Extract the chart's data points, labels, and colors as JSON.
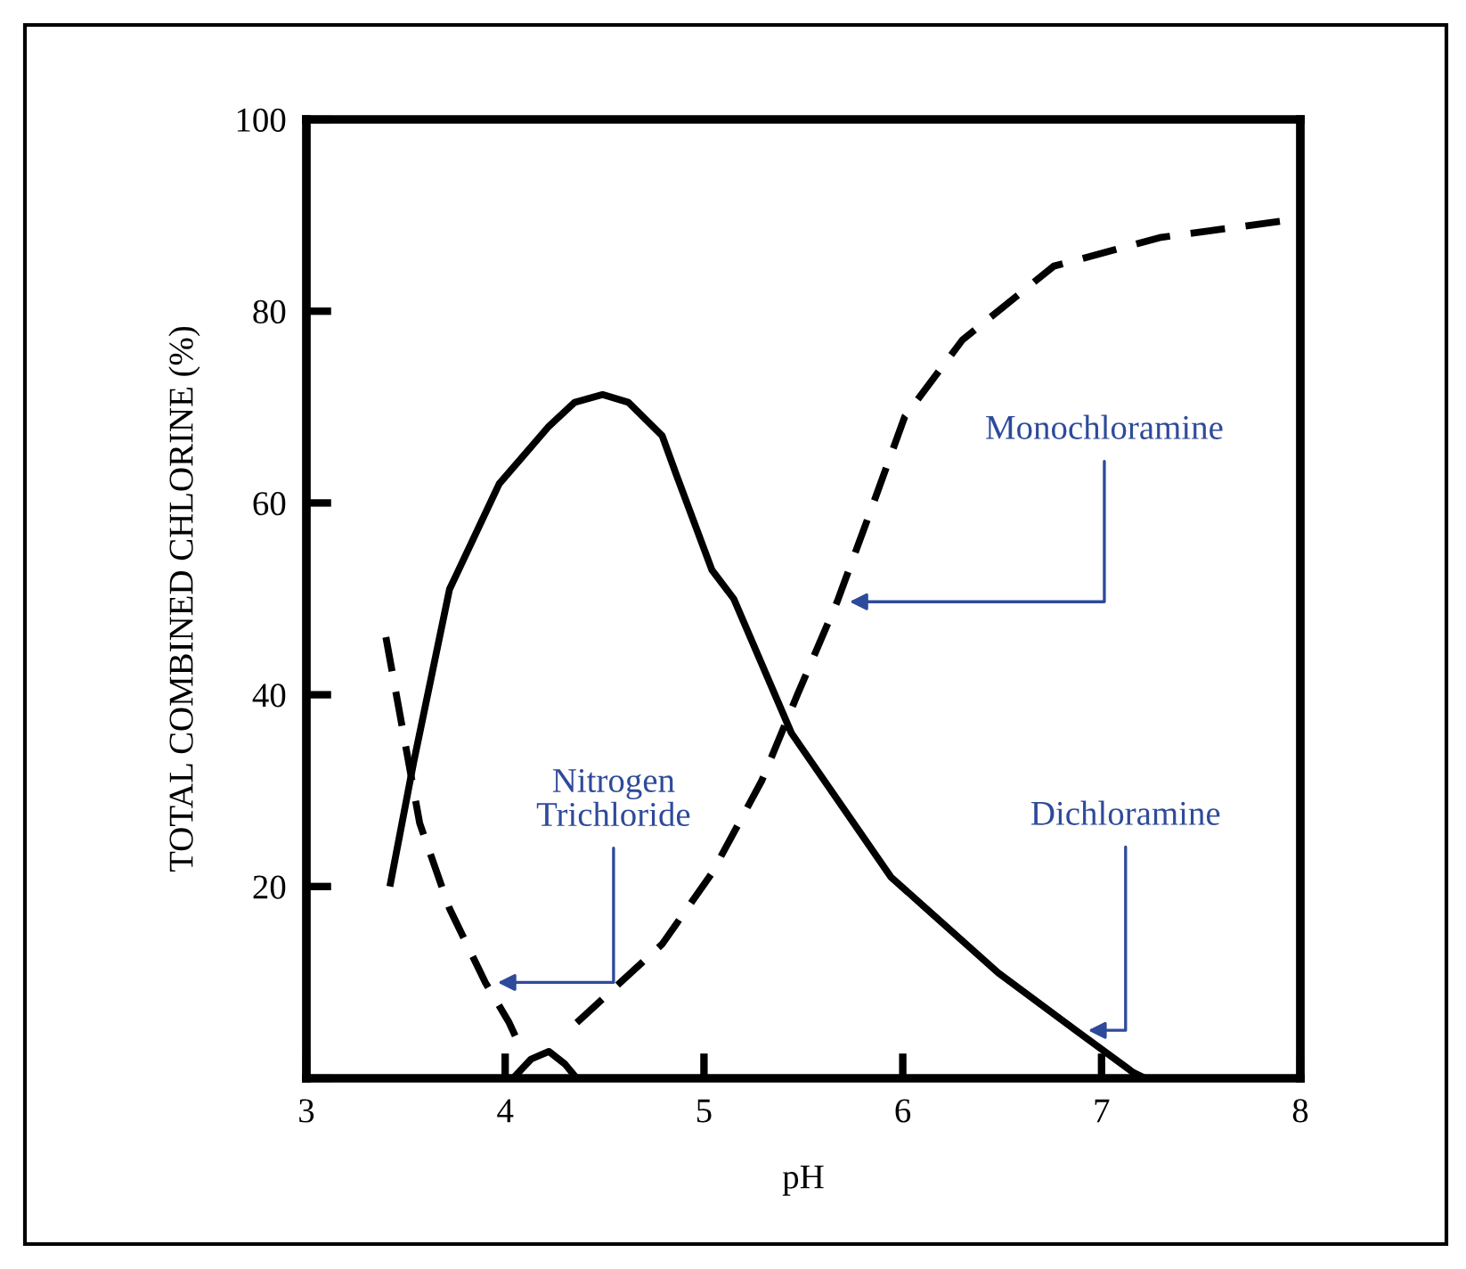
{
  "chart_data": {
    "type": "line",
    "xlabel": "pH",
    "ylabel": "TOTAL COMBINED CHLORINE (%)",
    "xlim": [
      3,
      8
    ],
    "ylim": [
      0,
      100
    ],
    "xticks": [
      3,
      4,
      5,
      6,
      7,
      8
    ],
    "yticks": [
      {
        "value": 0,
        "label": null
      },
      20,
      40,
      60,
      80,
      100
    ],
    "grid": false,
    "legend": false,
    "marker": "none",
    "series": [
      {
        "color": "#000000",
        "line_style": "solid",
        "x": [
          3.42,
          3.54,
          3.72,
          3.97,
          4.22,
          4.35,
          4.49,
          4.62,
          4.79,
          4.86,
          5.04,
          5.15,
          5.44,
          5.94,
          6.48,
          6.87,
          7.16,
          7.22
        ],
        "values": [
          20,
          33,
          51,
          62,
          68,
          70.5,
          71.3,
          70.5,
          67,
          63,
          53,
          50,
          36,
          21,
          11,
          5,
          0.6,
          0
        ]
      },
      {
        "color": "#000000",
        "line_style": "dashed",
        "x": [
          3.4,
          3.57,
          3.72,
          3.9,
          4.02,
          4.06
        ],
        "values": [
          46,
          26.6,
          17.7,
          10,
          5.8,
          4
        ]
      },
      {
        "color": "#000000",
        "line_style": "solid",
        "x": [
          4.04,
          4.13,
          4.22,
          4.3,
          4.36
        ],
        "values": [
          0,
          2,
          2.8,
          1.5,
          0
        ]
      },
      {
        "color": "#000000",
        "line_style": "dashed",
        "x": [
          4.36,
          4.79,
          5.04,
          5.29,
          5.47,
          5.67,
          5.83,
          6.01,
          6.3,
          6.76,
          7.3,
          7.98
        ],
        "values": [
          5.8,
          14,
          21.4,
          31,
          40,
          49.7,
          58.7,
          69,
          77,
          84.7,
          87.7,
          89.6
        ]
      }
    ],
    "annotations": [
      "Nitrogen\nTrichloride",
      "Monochloramine",
      "Dichloramine"
    ]
  }
}
